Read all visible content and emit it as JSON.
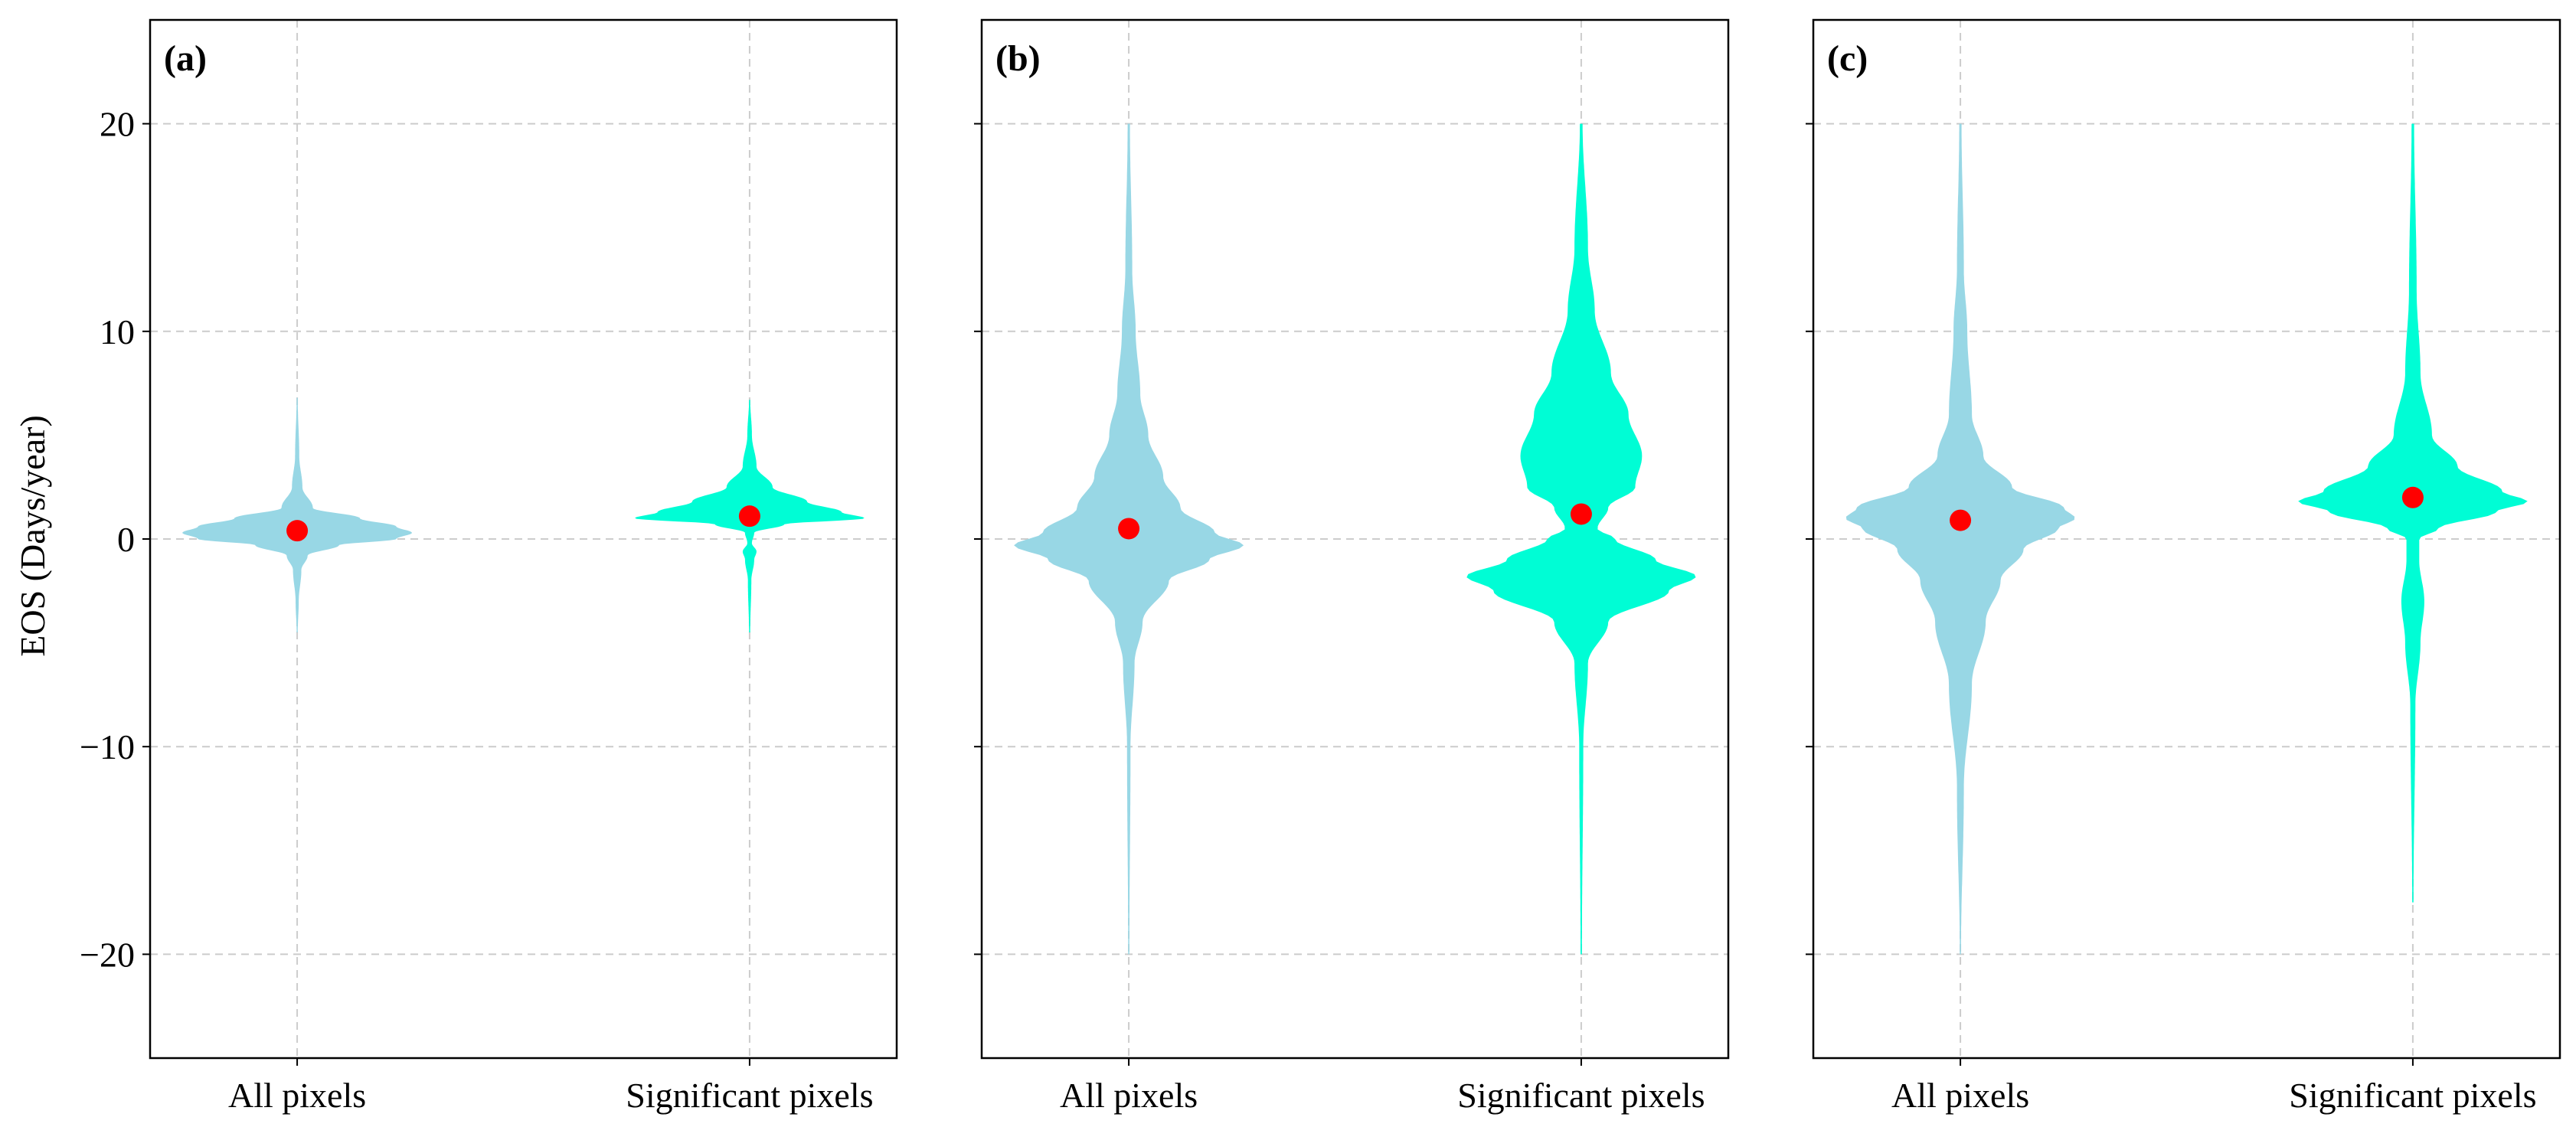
{
  "chart_data": {
    "type": "violin",
    "ylabel": "EOS (Days/year)",
    "ylim": [
      -25,
      25
    ],
    "yticks": [
      -20,
      -10,
      0,
      10,
      20
    ],
    "ytick_labels": [
      "−20",
      "−10",
      "0",
      "10",
      "20"
    ],
    "grid": true,
    "categories": [
      "All pixels",
      "Significant pixels"
    ],
    "colors": {
      "all": "#98d7e5",
      "significant": "#00fdd5",
      "mean": "#ff0000",
      "grid": "#cccccc"
    },
    "panels": [
      {
        "label": "(a)",
        "violins": [
          {
            "category": "All pixels",
            "mean": 0.4,
            "min": -4.5,
            "max": 6.8,
            "profile": [
              [
                -4.5,
                0.5
              ],
              [
                -3,
                1.5
              ],
              [
                -1.5,
                4
              ],
              [
                -0.8,
                10
              ],
              [
                -0.3,
                40
              ],
              [
                0,
                95
              ],
              [
                0.3,
                110
              ],
              [
                0.6,
                95
              ],
              [
                1,
                60
              ],
              [
                1.5,
                15
              ],
              [
                2.5,
                5
              ],
              [
                4,
                2
              ],
              [
                6.8,
                0.5
              ]
            ]
          },
          {
            "category": "Significant pixels",
            "mean": 1.1,
            "min": -4.5,
            "max": 6.7,
            "profile": [
              [
                -4.5,
                0.5
              ],
              [
                -2,
                1.5
              ],
              [
                -1,
                4
              ],
              [
                -0.6,
                6
              ],
              [
                -0.2,
                2
              ],
              [
                0.3,
                4
              ],
              [
                0.7,
                30
              ],
              [
                1,
                100
              ],
              [
                1.3,
                80
              ],
              [
                1.8,
                50
              ],
              [
                2.5,
                20
              ],
              [
                3.5,
                6
              ],
              [
                5,
                2
              ],
              [
                6.7,
                0.5
              ]
            ]
          }
        ]
      },
      {
        "label": "(b)",
        "violins": [
          {
            "category": "All pixels",
            "mean": 0.5,
            "min": -20,
            "max": 20,
            "profile": [
              [
                -20,
                0.5
              ],
              [
                -10,
                1.5
              ],
              [
                -6,
                5
              ],
              [
                -4,
                12
              ],
              [
                -2,
                35
              ],
              [
                -1,
                70
              ],
              [
                -0.3,
                100
              ],
              [
                0.3,
                75
              ],
              [
                1.5,
                45
              ],
              [
                3,
                30
              ],
              [
                5,
                17
              ],
              [
                7,
                10
              ],
              [
                10,
                6
              ],
              [
                13,
                3
              ],
              [
                20,
                1
              ]
            ]
          },
          {
            "category": "Significant pixels",
            "mean": 1.2,
            "min": -20,
            "max": 20,
            "profile": [
              [
                -20,
                0.5
              ],
              [
                -10,
                1.5
              ],
              [
                -6,
                5
              ],
              [
                -4,
                20
              ],
              [
                -2.5,
                65
              ],
              [
                -1.8,
                85
              ],
              [
                -1,
                55
              ],
              [
                0,
                25
              ],
              [
                0.5,
                12
              ],
              [
                1.5,
                20
              ],
              [
                2.5,
                40
              ],
              [
                4,
                45
              ],
              [
                6,
                35
              ],
              [
                8,
                22
              ],
              [
                11,
                10
              ],
              [
                14,
                5
              ],
              [
                20,
                1
              ]
            ]
          }
        ]
      },
      {
        "label": "(c)",
        "violins": [
          {
            "category": "All pixels",
            "mean": 0.9,
            "min": -20,
            "max": 20,
            "profile": [
              [
                -20,
                0.5
              ],
              [
                -12,
                3
              ],
              [
                -7,
                10
              ],
              [
                -4,
                22
              ],
              [
                -2,
                35
              ],
              [
                -0.5,
                55
              ],
              [
                0.5,
                85
              ],
              [
                1,
                100
              ],
              [
                1.5,
                90
              ],
              [
                2.5,
                45
              ],
              [
                4,
                20
              ],
              [
                6,
                10
              ],
              [
                10,
                6
              ],
              [
                13,
                3
              ],
              [
                20,
                1
              ]
            ]
          },
          {
            "category": "Significant pixels",
            "mean": 2.0,
            "min": -17.5,
            "max": 20,
            "profile": [
              [
                -17.5,
                0.5
              ],
              [
                -8,
                2
              ],
              [
                -5,
                6
              ],
              [
                -3,
                9
              ],
              [
                -1,
                5
              ],
              [
                0,
                5
              ],
              [
                0.5,
                20
              ],
              [
                1.3,
                65
              ],
              [
                1.8,
                90
              ],
              [
                2.3,
                70
              ],
              [
                3.5,
                35
              ],
              [
                5,
                15
              ],
              [
                8,
                6
              ],
              [
                12,
                3
              ],
              [
                20,
                1
              ]
            ]
          }
        ]
      }
    ]
  }
}
